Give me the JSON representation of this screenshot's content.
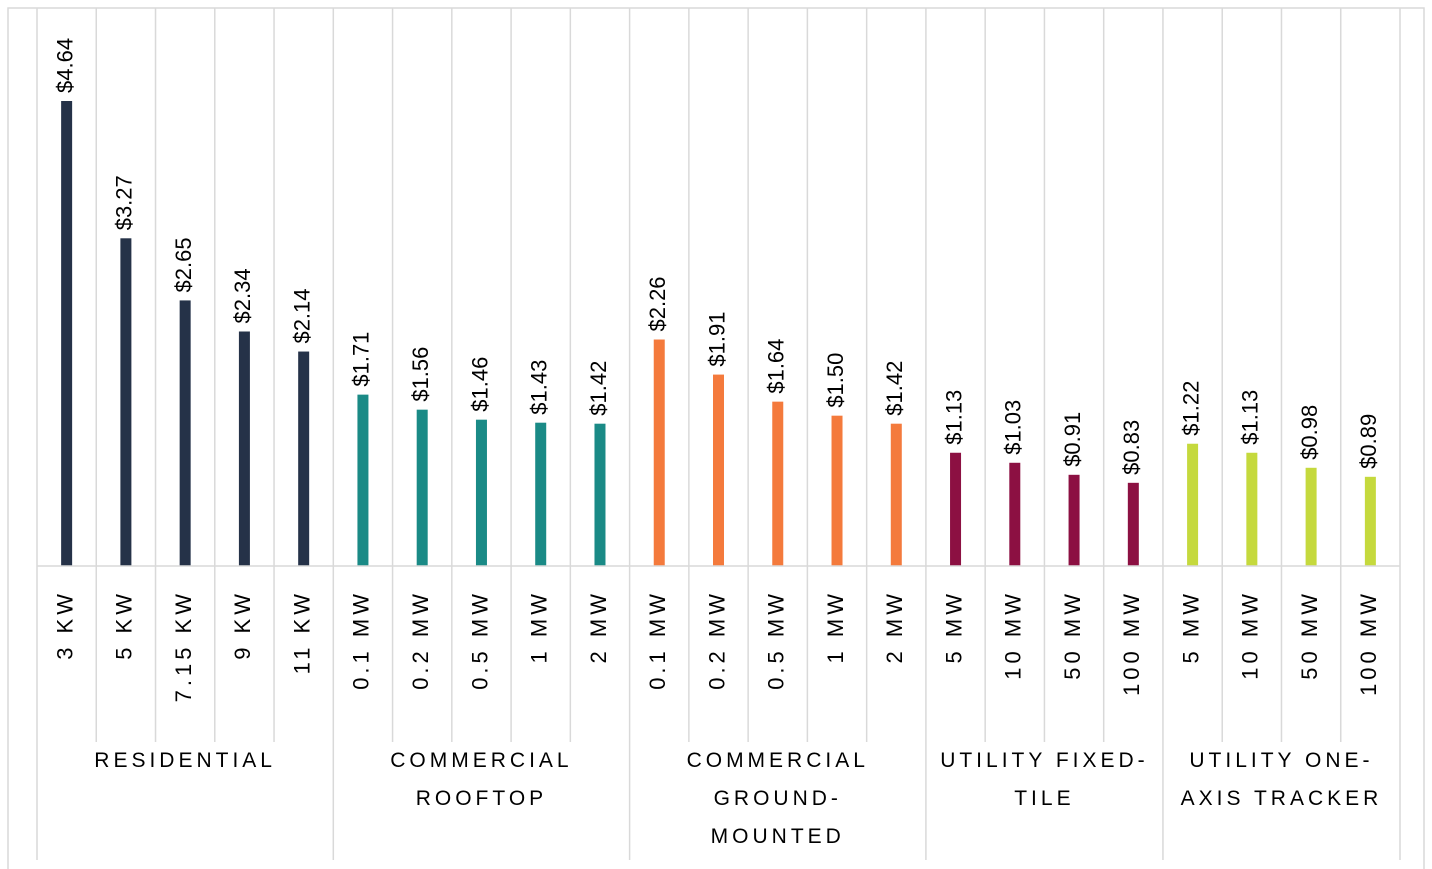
{
  "chart_data": {
    "type": "bar",
    "groups": [
      {
        "name": "RESIDENTIAL",
        "color": "#253248",
        "categories": [
          "3 KW",
          "5 KW",
          "7.15 KW",
          "9 KW",
          "11 KW"
        ],
        "values": [
          4.64,
          3.27,
          2.65,
          2.34,
          2.14
        ],
        "value_labels": [
          "$4.64",
          "$3.27",
          "$2.65",
          "$2.34",
          "$2.14"
        ]
      },
      {
        "name": "COMMERCIAL ROOFTOP",
        "color": "#1a8a86",
        "categories": [
          "0.1 MW",
          "0.2 MW",
          "0.5 MW",
          "1 MW",
          "2 MW"
        ],
        "values": [
          1.71,
          1.56,
          1.46,
          1.43,
          1.42
        ],
        "value_labels": [
          "$1.71",
          "$1.56",
          "$1.46",
          "$1.43",
          "$1.42"
        ]
      },
      {
        "name": "COMMERCIAL GROUND-MOUNTED",
        "color": "#f47a3c",
        "categories": [
          "0.1 MW",
          "0.2 MW",
          "0.5 MW",
          "1 MW",
          "2 MW"
        ],
        "values": [
          2.26,
          1.91,
          1.64,
          1.5,
          1.42
        ],
        "value_labels": [
          "$2.26",
          "$1.91",
          "$1.64",
          "$1.50",
          "$1.42"
        ]
      },
      {
        "name": "UTILITY FIXED-TILE",
        "color": "#8c1042",
        "categories": [
          "5 MW",
          "10 MW",
          "50 MW",
          "100 MW"
        ],
        "values": [
          1.13,
          1.03,
          0.91,
          0.83
        ],
        "value_labels": [
          "$1.13",
          "$1.03",
          "$0.91",
          "$0.83"
        ]
      },
      {
        "name": "UTILITY ONE-AXIS TRACKER",
        "color": "#c5d93d",
        "categories": [
          "5 MW",
          "10 MW",
          "50 MW",
          "100 MW"
        ],
        "values": [
          1.22,
          1.13,
          0.98,
          0.89
        ],
        "value_labels": [
          "$1.22",
          "$1.13",
          "$0.98",
          "$0.89"
        ]
      }
    ]
  }
}
